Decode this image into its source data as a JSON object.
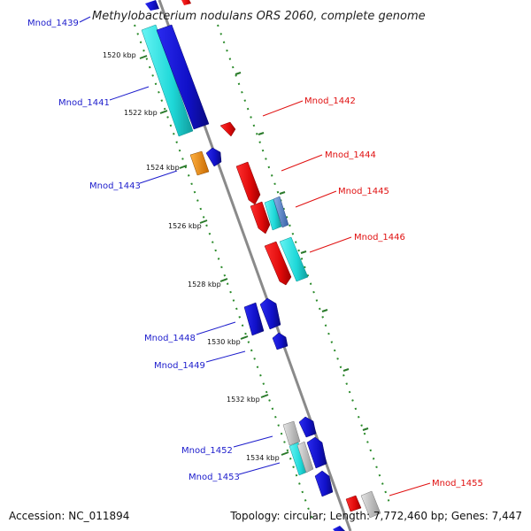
{
  "title": "Methylobacterium nodulans ORS 2060, complete genome",
  "footer": {
    "accession": "Accession: NC_011894",
    "summary": "Topology: circular; Length: 7,772,460 bp; Genes: 7,447"
  },
  "colors": {
    "forward": "#1c1ccc",
    "reverse": "#e01010",
    "cyan": "#22dddd",
    "steel": "#5a8ac8",
    "orange": "#f08c1c",
    "gray": "#bdbdbd",
    "backbone": "#8a8a8a",
    "tick": "#2a8a2a"
  },
  "kbp_marks": [
    "1520 kbp",
    "1522 kbp",
    "1524 kbp",
    "1526 kbp",
    "1528 kbp",
    "1530 kbp",
    "1532 kbp",
    "1534 kbp"
  ],
  "gene_labels": {
    "left": [
      "Mnod_1439",
      "Mnod_1441",
      "Mnod_1443",
      "Mnod_1448",
      "Mnod_1449",
      "Mnod_1452",
      "Mnod_1453"
    ],
    "right": [
      "Mnod_1442",
      "Mnod_1444",
      "Mnod_1445",
      "Mnod_1446",
      "Mnod_1455"
    ]
  }
}
